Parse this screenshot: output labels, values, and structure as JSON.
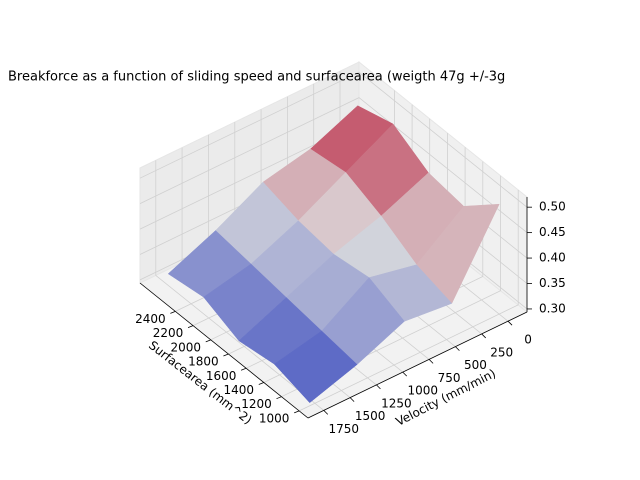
{
  "chart_data": {
    "type": "surface",
    "title": "Breakforce as a function of sliding speed and surfacearea (weigth 47g +/-3g",
    "xlabel": "Surfacearea (mm^2)",
    "ylabel": "Velocity (mm/min)",
    "x": [
      1000,
      1400,
      1800,
      2200,
      2600
    ],
    "y": [
      0,
      450,
      900,
      1350,
      1800
    ],
    "z": [
      [
        0.51,
        0.36,
        0.37,
        0.33,
        0.3
      ],
      [
        0.45,
        0.38,
        0.4,
        0.34,
        0.32
      ],
      [
        0.46,
        0.42,
        0.39,
        0.35,
        0.31
      ],
      [
        0.5,
        0.45,
        0.4,
        0.36,
        0.34
      ],
      [
        0.48,
        0.44,
        0.42,
        0.37,
        0.33
      ]
    ],
    "xlim": [
      900,
      2800
    ],
    "ylim": [
      -180,
      1900
    ],
    "zlim": [
      0.294,
      0.52
    ],
    "xticks": [
      1000,
      1200,
      1400,
      1600,
      1800,
      2000,
      2200,
      2400
    ],
    "yticks": [
      0,
      250,
      500,
      750,
      1000,
      1250,
      1500,
      1750
    ],
    "zticks": [
      {
        "value": 0.3,
        "label": "0.30"
      },
      0.35,
      {
        "value": 0.4,
        "label": "0.40"
      },
      0.45,
      {
        "value": 0.5,
        "label": "0.50"
      }
    ],
    "colormap": "coolwarm",
    "grid": true
  }
}
